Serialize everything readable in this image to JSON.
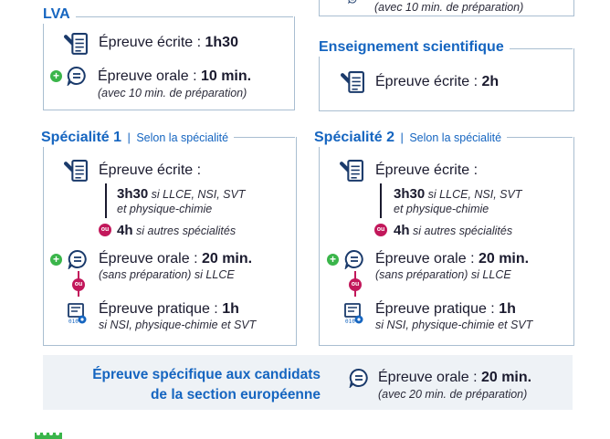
{
  "top_right_partial": {
    "note": "(avec 10 min. de préparation)"
  },
  "lva": {
    "title": "LVA",
    "written": {
      "label": "Épreuve écrite : ",
      "value": "1h30"
    },
    "oral": {
      "label": "Épreuve orale : ",
      "value": "10 min.",
      "note": "(avec 10 min. de préparation)"
    }
  },
  "ens_sci": {
    "title": "Enseignement scientifique",
    "written": {
      "label": "Épreuve écrite : ",
      "value": "2h"
    }
  },
  "spe1": {
    "title": "Spécialité 1",
    "pipe": "|",
    "subtitle": "Selon la spécialité",
    "written_label": "Épreuve écrite :",
    "opt1_value": "3h30",
    "opt1_note_a": " si LLCE, NSI, SVT",
    "opt1_note_b": "et physique-chimie",
    "ou": "ou",
    "opt2_value": "4h",
    "opt2_note": " si autres spécialités",
    "oral_label": "Épreuve orale : ",
    "oral_value": "20 min.",
    "oral_note": "(sans préparation) si LLCE",
    "practical_label": "Épreuve pratique : ",
    "practical_value": "1h",
    "practical_note": "si NSI, physique-chimie et SVT"
  },
  "spe2": {
    "title": "Spécialité 2",
    "pipe": "|",
    "subtitle": "Selon la spécialité",
    "written_label": "Épreuve écrite :",
    "opt1_value": "3h30",
    "opt1_note_a": " si LLCE, NSI, SVT",
    "opt1_note_b": "et physique-chimie",
    "ou": "ou",
    "opt2_value": "4h",
    "opt2_note": " si autres spécialités",
    "oral_label": "Épreuve orale : ",
    "oral_value": "20 min.",
    "oral_note": "(sans préparation) si LLCE",
    "practical_label": "Épreuve pratique : ",
    "practical_value": "1h",
    "practical_note": "si NSI, physique-chimie et SVT"
  },
  "euro": {
    "title_line1": "Épreuve spécifique aux candidats",
    "title_line2": "de la section européenne",
    "oral_label": "Épreuve orale : ",
    "oral_value": "20 min.",
    "oral_note": "(avec 20 min. de préparation)"
  },
  "colors": {
    "accent": "#1565c0",
    "border": "#a9bed1",
    "ou": "#c2185b",
    "plus": "#3ab54a",
    "panel": "#eef2f6"
  }
}
